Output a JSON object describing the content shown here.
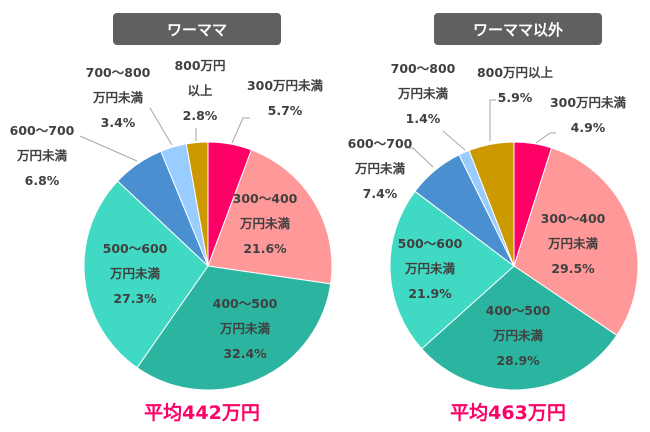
{
  "chart_data": [
    {
      "type": "pie",
      "title": "ワーママ",
      "categories": [
        "300万円未満",
        "300～400万円未満",
        "400～500万円未満",
        "500～600万円未満",
        "600～700万円未満",
        "700～800万円未満",
        "800万円以上"
      ],
      "values": [
        5.7,
        21.6,
        32.4,
        27.3,
        6.8,
        3.4,
        2.8
      ],
      "label_lines": [
        [
          "300万円未満",
          "5.7%"
        ],
        [
          "300～400",
          "万円未満",
          "21.6%"
        ],
        [
          "400～500",
          "万円未満",
          "32.4%"
        ],
        [
          "500～600",
          "万円未満",
          "27.3%"
        ],
        [
          "600～700",
          "万円未満",
          "6.8%"
        ],
        [
          "700～800",
          "万円未満",
          "3.4%"
        ],
        [
          "800万円",
          "以上",
          "2.8%"
        ]
      ],
      "colors": [
        "#ff0066",
        "#ff9999",
        "#2bb5a0",
        "#40d9c4",
        "#4a90d0",
        "#99ccff",
        "#cc9900"
      ],
      "annotation": "平均442万円",
      "start": "12 o'clock, clockwise"
    },
    {
      "type": "pie",
      "title": "ワーママ以外",
      "categories": [
        "300万円未満",
        "300～400万円未満",
        "400～500万円未満",
        "500～600万円未満",
        "600～700万円未満",
        "700～800万円未満",
        "800万円以上"
      ],
      "values": [
        4.9,
        29.5,
        28.9,
        21.9,
        7.4,
        1.4,
        5.9
      ],
      "label_lines": [
        [
          "300万円未満",
          "4.9%"
        ],
        [
          "300～400",
          "万円未満",
          "29.5%"
        ],
        [
          "400～500",
          "万円未満",
          "28.9%"
        ],
        [
          "500～600",
          "万円未満",
          "21.9%"
        ],
        [
          "600～700",
          "万円未満",
          "7.4%"
        ],
        [
          "700～800",
          "万円未満",
          "1.4%"
        ],
        [
          "800万円以上",
          "5.9%"
        ]
      ],
      "colors": [
        "#ff0066",
        "#ff9999",
        "#2bb5a0",
        "#40d9c4",
        "#4a90d0",
        "#99ccff",
        "#cc9900"
      ],
      "annotation": "平均463万円",
      "start": "12 o'clock, clockwise"
    }
  ]
}
